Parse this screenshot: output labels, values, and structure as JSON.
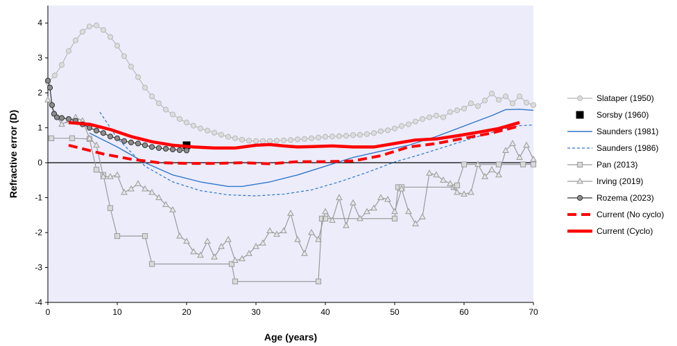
{
  "chart_data": {
    "type": "line",
    "title": "",
    "xlabel": "Age (years)",
    "ylabel": "Refractive error (D)",
    "xlim": [
      0,
      70
    ],
    "ylim": [
      -4,
      4.5
    ],
    "xticks": [
      0,
      10,
      20,
      30,
      40,
      50,
      60,
      70
    ],
    "yticks": [
      -4,
      -3,
      -2,
      -1,
      0,
      1,
      2,
      3,
      4
    ],
    "grid": false,
    "legend_position": "right",
    "plot_background": "#ececfb",
    "series": [
      {
        "name": "Slataper (1950)",
        "style": "line-circle",
        "color": "#b8b8b8",
        "marker_fill": "#dcdcdc",
        "x": [
          0,
          1,
          2,
          3,
          4,
          5,
          6,
          7,
          8,
          9,
          10,
          11,
          12,
          13,
          14,
          15,
          16,
          17,
          18,
          19,
          20,
          21,
          22,
          23,
          24,
          25,
          26,
          27,
          28,
          29,
          30,
          31,
          32,
          33,
          34,
          35,
          36,
          37,
          38,
          39,
          40,
          41,
          42,
          43,
          44,
          45,
          46,
          47,
          48,
          49,
          50,
          51,
          52,
          53,
          54,
          55,
          56,
          57,
          58,
          59,
          60,
          61,
          62,
          63,
          64,
          65,
          66,
          67,
          68,
          69,
          70
        ],
        "y": [
          2.3,
          2.5,
          2.8,
          3.2,
          3.5,
          3.75,
          3.9,
          3.93,
          3.8,
          3.6,
          3.35,
          3.05,
          2.75,
          2.45,
          2.15,
          1.9,
          1.7,
          1.52,
          1.38,
          1.25,
          1.15,
          1.06,
          0.98,
          0.92,
          0.86,
          0.8,
          0.74,
          0.7,
          0.66,
          0.63,
          0.62,
          0.62,
          0.62,
          0.63,
          0.64,
          0.65,
          0.67,
          0.68,
          0.7,
          0.72,
          0.74,
          0.75,
          0.76,
          0.77,
          0.79,
          0.8,
          0.82,
          0.85,
          0.9,
          0.93,
          0.98,
          1.05,
          1.1,
          1.18,
          1.25,
          1.3,
          1.35,
          1.3,
          1.45,
          1.5,
          1.55,
          1.7,
          1.62,
          1.78,
          1.98,
          1.8,
          1.9,
          1.7,
          1.9,
          1.72,
          1.65
        ]
      },
      {
        "name": "Sorsby (1960)",
        "style": "square-marker",
        "color": "#000000",
        "x": [
          20
        ],
        "y": [
          0.5
        ]
      },
      {
        "name": "Saunders (1981)",
        "style": "line-solid",
        "color": "#2e75c9",
        "x": [
          6,
          10,
          14,
          18,
          22,
          26,
          28,
          32,
          36,
          40,
          44,
          48,
          52,
          56,
          60,
          64,
          66,
          68,
          70
        ],
        "y": [
          0.85,
          0.45,
          0.0,
          -0.35,
          -0.55,
          -0.68,
          -0.68,
          -0.55,
          -0.35,
          -0.1,
          0.15,
          0.33,
          0.5,
          0.75,
          1.05,
          1.35,
          1.52,
          1.53,
          1.5
        ]
      },
      {
        "name": "Saunders (1986)",
        "style": "line-dashed",
        "color": "#2e75c9",
        "x": [
          7.5,
          10,
          14,
          18,
          22,
          26,
          30,
          34,
          38,
          42,
          46,
          50,
          54,
          58,
          62,
          66,
          68,
          70
        ],
        "y": [
          1.45,
          0.7,
          -0.1,
          -0.55,
          -0.8,
          -0.92,
          -0.95,
          -0.9,
          -0.78,
          -0.55,
          -0.28,
          0.02,
          0.25,
          0.5,
          0.75,
          0.98,
          1.06,
          1.08
        ]
      },
      {
        "name": "Pan (2013)",
        "style": "line-square",
        "color": "#9a9a9a",
        "marker_fill": "#d9d9d9",
        "x": [
          0.5,
          3.5,
          6,
          7,
          8,
          9,
          10,
          14,
          15,
          26.5,
          27,
          39,
          39.5,
          40,
          50,
          50.5,
          51,
          58.5,
          59,
          60,
          65,
          68.5,
          70
        ],
        "y": [
          0.7,
          0.7,
          0.68,
          -0.2,
          -0.35,
          -1.3,
          -2.1,
          -2.1,
          -2.9,
          -2.9,
          -3.4,
          -3.4,
          -1.6,
          -1.6,
          -1.6,
          -0.7,
          -0.7,
          -0.7,
          -0.65,
          -0.05,
          -0.05,
          -0.05,
          -0.05
        ]
      },
      {
        "name": "Irving (2019)",
        "style": "line-triangle",
        "color": "#9a9a9a",
        "marker_fill": "#e6e6e6",
        "x": [
          0,
          1,
          2,
          3,
          4,
          5,
          6,
          7,
          8,
          9,
          10,
          11,
          12,
          13,
          14,
          15,
          16,
          17,
          18,
          19,
          20,
          21,
          22,
          23,
          24,
          25,
          26,
          27,
          28,
          29,
          30,
          31,
          32,
          33,
          34,
          35,
          36,
          37,
          38,
          39,
          40,
          41,
          42,
          43,
          44,
          45,
          46,
          47,
          48,
          49,
          50,
          51,
          52,
          53,
          54,
          55,
          56,
          57,
          58,
          59,
          60,
          61,
          62,
          63,
          64,
          65,
          66,
          67,
          68,
          69,
          70
        ],
        "y": [
          1.8,
          1.4,
          1.1,
          1.2,
          1.3,
          1.2,
          0.7,
          0.5,
          -0.4,
          -0.4,
          -0.35,
          -0.85,
          -0.75,
          -0.6,
          -0.75,
          -0.85,
          -1.0,
          -1.2,
          -1.35,
          -2.1,
          -2.25,
          -2.55,
          -2.65,
          -2.25,
          -2.7,
          -2.4,
          -2.2,
          -2.8,
          -2.75,
          -2.6,
          -2.4,
          -2.3,
          -1.95,
          -2.05,
          -1.95,
          -1.45,
          -2.2,
          -2.6,
          -2.0,
          -2.2,
          -1.4,
          -1.65,
          -1.0,
          -1.8,
          -1.15,
          -1.6,
          -1.4,
          -1.3,
          -1.0,
          -1.05,
          -1.4,
          -0.75,
          -1.4,
          -1.75,
          -1.55,
          -0.3,
          -0.35,
          -0.5,
          -0.6,
          -0.85,
          -0.9,
          -0.85,
          -0.05,
          -0.4,
          -0.2,
          -0.35,
          0.35,
          0.55,
          0.15,
          0.5,
          0.1
        ]
      },
      {
        "name": "Rozema (2023)",
        "style": "line-circle",
        "color": "#333333",
        "marker_fill": "#8c8c8c",
        "x": [
          0,
          0.3,
          0.6,
          0.9,
          1.3,
          2,
          3,
          4,
          5,
          6,
          7,
          8,
          9,
          10,
          11,
          12,
          13,
          14,
          15,
          16,
          17,
          18,
          19,
          20
        ],
        "y": [
          2.35,
          2.15,
          1.65,
          1.4,
          1.3,
          1.28,
          1.25,
          1.2,
          1.1,
          1.0,
          0.92,
          0.85,
          0.75,
          0.7,
          0.62,
          0.58,
          0.55,
          0.5,
          0.45,
          0.42,
          0.4,
          0.38,
          0.36,
          0.35
        ]
      },
      {
        "name": "Current (No cyclo)",
        "style": "line-thick-dashed",
        "color": "#ff0000",
        "x": [
          3,
          5,
          8,
          12,
          16,
          20,
          24,
          28,
          32,
          36,
          40,
          44,
          48,
          52,
          56,
          60,
          64,
          68
        ],
        "y": [
          0.5,
          0.4,
          0.25,
          0.1,
          0.0,
          -0.02,
          -0.02,
          0.0,
          -0.03,
          0.03,
          0.03,
          0.05,
          0.2,
          0.45,
          0.55,
          0.7,
          0.85,
          1.05
        ]
      },
      {
        "name": "Current (Cyclo)",
        "style": "line-thick-solid",
        "color": "#ff0000",
        "x": [
          3,
          6,
          9,
          12,
          15,
          18,
          21,
          24,
          27,
          30,
          32,
          34,
          36,
          38,
          41,
          44,
          47,
          50,
          53,
          56,
          59,
          62,
          65,
          68
        ],
        "y": [
          1.15,
          1.1,
          0.95,
          0.75,
          0.6,
          0.5,
          0.45,
          0.42,
          0.42,
          0.5,
          0.52,
          0.48,
          0.45,
          0.46,
          0.48,
          0.45,
          0.45,
          0.55,
          0.65,
          0.68,
          0.77,
          0.87,
          0.98,
          1.15
        ]
      }
    ]
  }
}
